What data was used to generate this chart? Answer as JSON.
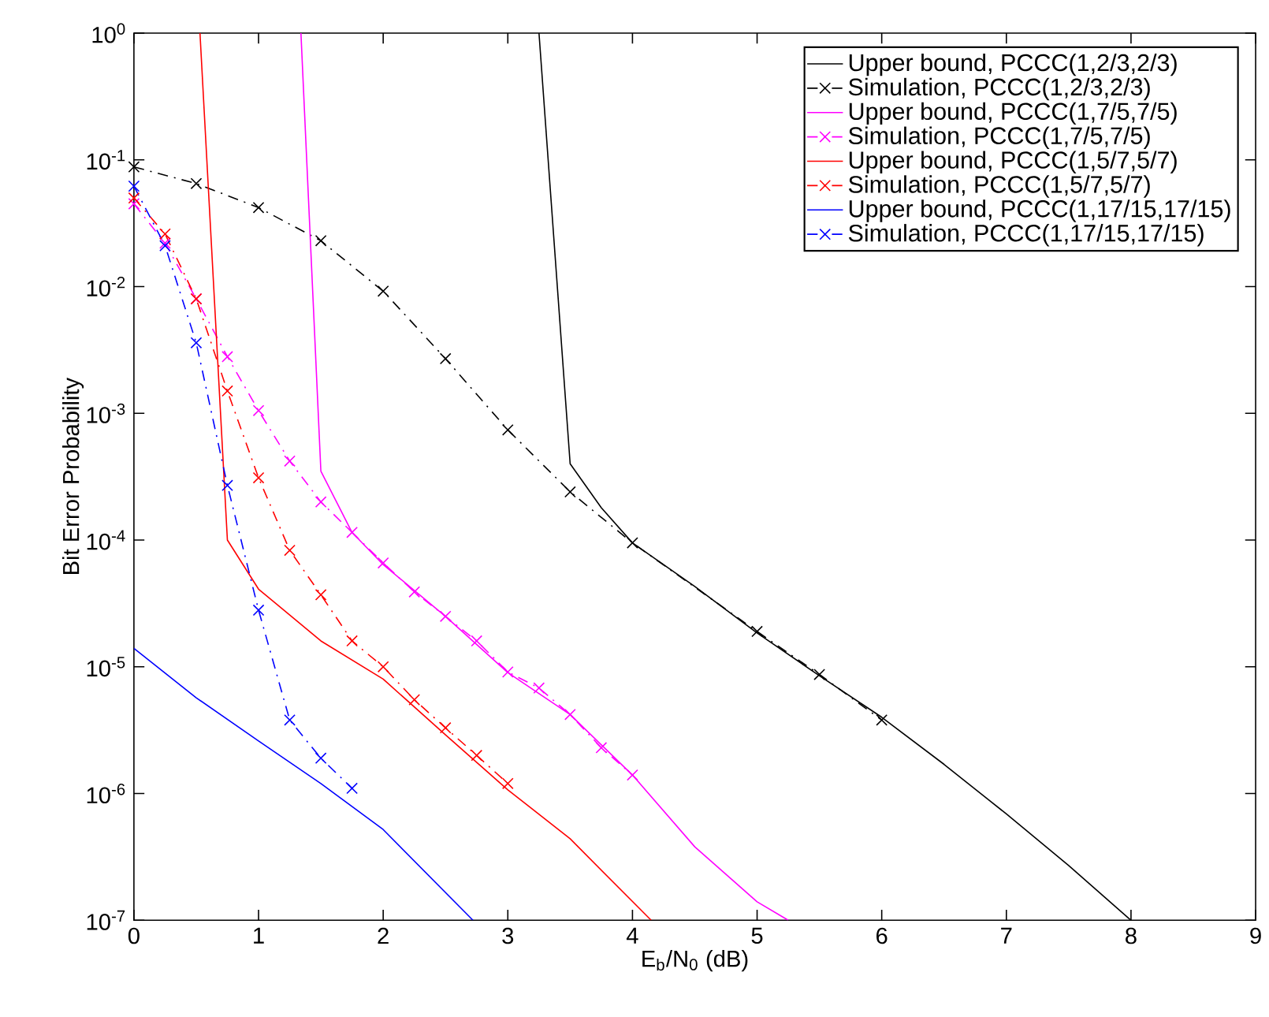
{
  "chart_data": {
    "type": "line",
    "xlabel": "E$_{b}$/N$_{0}$ (dB)",
    "ylabel": "Bit Error Probability",
    "log": "y",
    "legend": "top right",
    "xlim": [
      0,
      9
    ],
    "xticks": [
      0,
      1,
      2,
      3,
      4,
      5,
      6,
      7,
      8,
      9
    ],
    "ylim": [
      1e-07,
      1
    ],
    "yticks": [
      {
        "value": 1e-07,
        "label": "10$^{-7}$"
      },
      {
        "value": 1e-06,
        "label": "10$^{-6}$"
      },
      {
        "value": 1e-05,
        "label": "10$^{-5}$"
      },
      {
        "value": 0.0001,
        "label": "10$^{-4}$"
      },
      {
        "value": 0.001,
        "label": "10$^{-3}$"
      },
      {
        "value": 0.01,
        "label": "10$^{-2}$"
      },
      {
        "value": 0.1,
        "label": "10$^{-1}$"
      },
      {
        "value": 1,
        "label": "10$^{0}$"
      }
    ],
    "series": [
      {
        "name": "Upper bound, PCCC(1,2/3,2/3)",
        "color": "#000000",
        "line_style": "solid",
        "marker": "none",
        "x": [
          3.25,
          3.5,
          3.75,
          4,
          4.5,
          5,
          5.5,
          6,
          6.5,
          7,
          7.5,
          8
        ],
        "values": [
          1,
          0.0004,
          0.00018,
          9.5e-05,
          4.3e-05,
          1.85e-05,
          8.5e-06,
          4e-06,
          1.7e-06,
          6.9e-07,
          2.7e-07,
          1e-07
        ]
      },
      {
        "name": "Simulation, PCCC(1,2/3,2/3)",
        "color": "#000000",
        "line_style": "dashdot",
        "marker": "cross",
        "x": [
          0,
          0.5,
          1,
          1.5,
          2,
          2.5,
          3,
          3.5,
          4,
          5,
          5.5,
          6
        ],
        "values": [
          0.088,
          0.065,
          0.042,
          0.023,
          0.0092,
          0.0027,
          0.00074,
          0.00024,
          9.5e-05,
          1.9e-05,
          8.7e-06,
          3.8e-06
        ]
      },
      {
        "name": "Upper bound, PCCC(1,7/5,7/5)",
        "color": "#ff00ff",
        "line_style": "solid",
        "marker": "none",
        "x": [
          1.34,
          1.5,
          1.75,
          2,
          2.5,
          3,
          3.5,
          4,
          4.5,
          5,
          5.25
        ],
        "values": [
          1,
          0.00035,
          0.000115,
          6.4e-05,
          2.5e-05,
          9e-06,
          4.2e-06,
          1.4e-06,
          3.8e-07,
          1.4e-07,
          1e-07
        ]
      },
      {
        "name": "Simulation, PCCC(1,7/5,7/5)",
        "color": "#ff00ff",
        "line_style": "dashdot",
        "marker": "cross",
        "x": [
          0,
          0.25,
          0.5,
          0.75,
          1,
          1.25,
          1.5,
          1.75,
          2,
          2.25,
          2.5,
          2.75,
          3,
          3.25,
          3.5,
          3.75,
          4
        ],
        "values": [
          0.045,
          0.022,
          0.008,
          0.0028,
          0.00105,
          0.00042,
          0.0002,
          0.000115,
          6.6e-05,
          3.9e-05,
          2.5e-05,
          1.6e-05,
          9.1e-06,
          6.8e-06,
          4.2e-06,
          2.3e-06,
          1.4e-06
        ]
      },
      {
        "name": "Upper bound, PCCC(1,5/7,5/7)",
        "color": "#ff0000",
        "line_style": "solid",
        "marker": "none",
        "x": [
          0.53,
          0.75,
          1,
          1.5,
          2,
          2.5,
          3,
          3.5,
          4.15
        ],
        "values": [
          1,
          0.0001,
          4.1e-05,
          1.6e-05,
          8e-06,
          2.9e-06,
          1.07e-06,
          4.4e-07,
          1e-07
        ]
      },
      {
        "name": "Simulation, PCCC(1,5/7,5/7)",
        "color": "#ff0000",
        "line_style": "dashdot",
        "marker": "cross",
        "x": [
          0,
          0.25,
          0.5,
          0.75,
          1,
          1.25,
          1.5,
          1.75,
          2,
          2.25,
          2.5,
          2.75,
          3
        ],
        "values": [
          0.05,
          0.026,
          0.008,
          0.0015,
          0.00031,
          8.3e-05,
          3.7e-05,
          1.6e-05,
          1e-05,
          5.5e-06,
          3.3e-06,
          2e-06,
          1.2e-06
        ]
      },
      {
        "name": "Upper bound, PCCC(1,17/15,17/15)",
        "color": "#0000ff",
        "line_style": "solid",
        "marker": "none",
        "x": [
          0,
          0.5,
          1,
          1.5,
          2,
          2.72
        ],
        "values": [
          1.4e-05,
          5.7e-06,
          2.6e-06,
          1.2e-06,
          5.2e-07,
          1e-07
        ]
      },
      {
        "name": "Simulation, PCCC(1,17/15,17/15)",
        "color": "#0000ff",
        "line_style": "dashdot",
        "marker": "cross",
        "x": [
          0,
          0.25,
          0.5,
          0.75,
          1,
          1.25,
          1.5,
          1.75
        ],
        "values": [
          0.062,
          0.021,
          0.0036,
          0.00027,
          2.8e-05,
          3.8e-06,
          1.9e-06,
          1.1e-06
        ]
      }
    ]
  }
}
